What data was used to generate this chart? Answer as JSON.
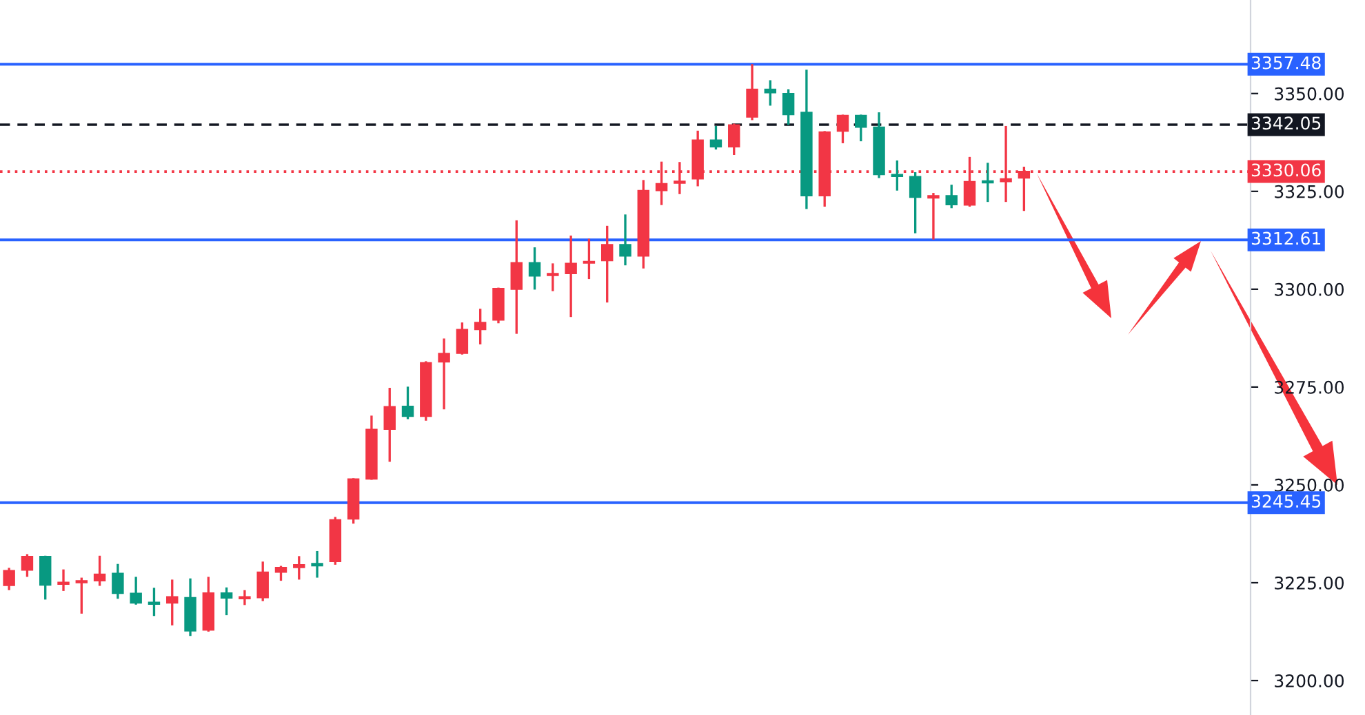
{
  "chart_data": {
    "type": "candlestick",
    "categories": [
      null,
      null,
      null,
      null,
      null,
      null,
      null,
      null,
      null,
      null,
      null,
      null,
      null,
      null,
      null,
      null,
      null,
      null,
      null,
      null,
      null,
      null,
      null,
      null,
      null,
      null,
      null,
      null,
      null,
      null,
      null,
      null,
      null,
      null,
      null,
      null,
      null,
      null,
      null,
      null,
      null,
      null,
      null,
      null,
      null,
      null,
      null,
      null,
      null,
      null,
      null,
      null,
      null,
      null,
      null,
      null,
      null,
      null,
      null,
      null,
      null,
      null,
      null,
      null,
      null,
      null,
      null,
      null,
      null
    ],
    "ohlc": [
      [
        3224.3,
        3228.8,
        3223.1,
        3228.1
      ],
      [
        3228.2,
        3232.3,
        3226.5,
        3231.7
      ],
      [
        3231.7,
        3231.9,
        3220.7,
        3224.4
      ],
      [
        3224.6,
        3228.4,
        3222.9,
        3225.1
      ],
      [
        3225.0,
        3226.3,
        3217.1,
        3225.5
      ],
      [
        3225.5,
        3231.9,
        3224.2,
        3227.2
      ],
      [
        3227.4,
        3229.8,
        3220.9,
        3222.3
      ],
      [
        3222.3,
        3226.5,
        3219.4,
        3219.8
      ],
      [
        3220.0,
        3223.7,
        3216.5,
        3219.5
      ],
      [
        3219.8,
        3225.8,
        3214.1,
        3221.4
      ],
      [
        3221.2,
        3226.1,
        3211.4,
        3212.7
      ],
      [
        3212.9,
        3226.5,
        3212.5,
        3222.4
      ],
      [
        3222.4,
        3223.8,
        3216.7,
        3221.1
      ],
      [
        3220.9,
        3223.1,
        3219.3,
        3221.4
      ],
      [
        3221.2,
        3230.4,
        3220.3,
        3227.7
      ],
      [
        3227.7,
        3229.3,
        3225.5,
        3228.9
      ],
      [
        3228.9,
        3231.8,
        3225.8,
        3229.6
      ],
      [
        3229.9,
        3233.1,
        3226.3,
        3229.3
      ],
      [
        3230.4,
        3241.8,
        3229.6,
        3241.1
      ],
      [
        3241.3,
        3251.7,
        3240.1,
        3251.5
      ],
      [
        3251.5,
        3267.7,
        3251.3,
        3264.2
      ],
      [
        3264.2,
        3274.8,
        3255.9,
        3270.0
      ],
      [
        3270.1,
        3275.1,
        3266.8,
        3267.5
      ],
      [
        3267.5,
        3281.6,
        3266.4,
        3281.2
      ],
      [
        3281.4,
        3287.4,
        3269.3,
        3283.6
      ],
      [
        3283.6,
        3291.5,
        3283.3,
        3289.7
      ],
      [
        3289.7,
        3295.0,
        3285.9,
        3291.5
      ],
      [
        3292.1,
        3300.4,
        3291.3,
        3300.2
      ],
      [
        3300.0,
        3317.6,
        3288.6,
        3306.8
      ],
      [
        3306.8,
        3310.7,
        3299.9,
        3303.4
      ],
      [
        3303.5,
        3306.6,
        3299.5,
        3304.0
      ],
      [
        3304.0,
        3313.7,
        3292.9,
        3306.6
      ],
      [
        3306.7,
        3312.9,
        3302.6,
        3307.1
      ],
      [
        3307.3,
        3316.2,
        3296.6,
        3311.4
      ],
      [
        3311.4,
        3319.1,
        3306.1,
        3308.5
      ],
      [
        3308.5,
        3327.9,
        3305.3,
        3325.2
      ],
      [
        3325.2,
        3332.6,
        3321.5,
        3327.0
      ],
      [
        3327.1,
        3332.5,
        3324.3,
        3327.6
      ],
      [
        3328.2,
        3340.5,
        3326.3,
        3338.1
      ],
      [
        3338.1,
        3341.7,
        3335.7,
        3336.4
      ],
      [
        3336.4,
        3342.3,
        3334.3,
        3342.0
      ],
      [
        3344.0,
        3357.5,
        3343.2,
        3351.1
      ],
      [
        3351.1,
        3353.4,
        3346.9,
        3350.2
      ],
      [
        3350.0,
        3351.1,
        3342.0,
        3344.6
      ],
      [
        3345.2,
        3356.1,
        3320.5,
        3323.9
      ],
      [
        3323.9,
        3340.4,
        3321.1,
        3340.2
      ],
      [
        3340.4,
        3344.6,
        3337.3,
        3344.4
      ],
      [
        3344.4,
        3344.6,
        3337.8,
        3341.4
      ],
      [
        3341.4,
        3345.2,
        3328.4,
        3329.3
      ],
      [
        3329.3,
        3332.9,
        3325.2,
        3328.8
      ],
      [
        3328.8,
        3329.9,
        3314.3,
        3323.5
      ],
      [
        3323.3,
        3324.6,
        3312.7,
        3323.9
      ],
      [
        3323.9,
        3326.7,
        3320.7,
        3321.6
      ],
      [
        3321.5,
        3333.8,
        3321.1,
        3327.5
      ],
      [
        3327.7,
        3332.3,
        3322.3,
        3327.2
      ],
      [
        3327.5,
        3341.7,
        3322.3,
        3328.2
      ],
      [
        3328.4,
        3331.3,
        3320.0,
        3330.1
      ],
      null,
      null,
      null,
      null,
      null,
      null,
      null,
      null,
      null,
      null,
      null,
      null
    ],
    "colors": [
      "#f23645",
      "#f23645",
      "#089981",
      "#f23645",
      "#f23645",
      "#f23645",
      "#089981",
      "#089981",
      "#089981",
      "#f23645",
      "#089981",
      "#f23645",
      "#089981",
      "#f23645",
      "#f23645",
      "#f23645",
      "#f23645",
      "#089981",
      "#f23645",
      "#f23645",
      "#f23645",
      "#f23645",
      "#089981",
      "#f23645",
      "#f23645",
      "#f23645",
      "#f23645",
      "#f23645",
      "#f23645",
      "#089981",
      "#f23645",
      "#f23645",
      "#f23645",
      "#f23645",
      "#089981",
      "#f23645",
      "#f23645",
      "#f23645",
      "#f23645",
      "#089981",
      "#f23645",
      "#f23645",
      "#089981",
      "#089981",
      "#089981",
      "#f23645",
      "#f23645",
      "#089981",
      "#089981",
      "#089981",
      "#089981",
      "#f23645",
      "#089981",
      "#f23645",
      "#089981",
      "#f23645",
      "#f23645",
      null,
      null,
      null,
      null,
      null,
      null,
      null,
      null,
      null,
      null,
      null,
      null
    ],
    "ylim": [
      3191.2,
      3373.9
    ],
    "yticks": [
      {
        "value": 3200,
        "label": "3200.00"
      },
      {
        "value": 3225,
        "label": "3225.00"
      },
      {
        "value": 3250,
        "label": "3250.00"
      },
      {
        "value": 3275,
        "label": "3275.00"
      },
      {
        "value": 3300,
        "label": "3300.00"
      },
      {
        "value": 3325,
        "label": "3325.00"
      },
      {
        "value": 3350,
        "label": "3350.00"
      }
    ],
    "tick_labels": "y",
    "ref_lines": [
      {
        "axis": "y",
        "value": 3357.48,
        "label": "3357.48",
        "color": "#2962ff",
        "line_style": "solid"
      },
      {
        "axis": "y",
        "value": 3342.05,
        "label": "3342.05",
        "color": "#131722",
        "line_style": "dashed"
      },
      {
        "axis": "y",
        "value": 3330.06,
        "label": "3330.06",
        "color": "#f23645",
        "line_style": "dotted"
      },
      {
        "axis": "y",
        "value": 3312.61,
        "label": "3312.61",
        "color": "#2962ff",
        "line_style": "solid"
      },
      {
        "axis": "y",
        "value": 3245.45,
        "label": "3245.45",
        "color": "#2962ff",
        "line_style": "solid"
      }
    ]
  }
}
